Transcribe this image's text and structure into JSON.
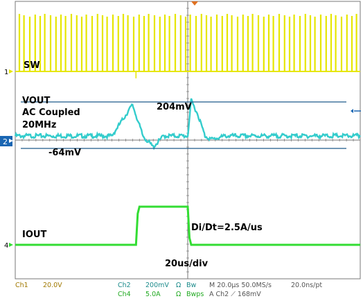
{
  "chart_data": {
    "type": "line",
    "title": "",
    "grid": true,
    "x_unit": "us",
    "x_range": [
      -100,
      100
    ],
    "series": [
      {
        "name": "SW",
        "channel": "1",
        "color": "#e6e600",
        "description_visible": "switch-node pulse train",
        "low_level_div": 0,
        "high_level_div": 1.5
      },
      {
        "name": "VOUT",
        "channel": "2",
        "color": "#33cccc",
        "notes": [
          "AC Coupled",
          "20MHz"
        ],
        "points": [
          [
            -100,
            0
          ],
          [
            -44,
            0
          ],
          [
            -32,
            0.18
          ],
          [
            -26,
            0
          ],
          [
            -20,
            -0.064
          ],
          [
            -14,
            0
          ],
          [
            0,
            0
          ],
          [
            2,
            0.204
          ],
          [
            6,
            0.12
          ],
          [
            10,
            0.0
          ],
          [
            14,
            -0.02
          ],
          [
            22,
            0
          ],
          [
            100,
            0
          ]
        ],
        "unit": "V"
      },
      {
        "name": "IOUT",
        "channel": "4",
        "color": "#33dd33",
        "points": [
          [
            -100,
            0
          ],
          [
            -30,
            0
          ],
          [
            -29,
            0.9
          ],
          [
            -28,
            1.1
          ],
          [
            0,
            1.1
          ],
          [
            1,
            0.2
          ],
          [
            2,
            0
          ],
          [
            100,
            0
          ]
        ],
        "unit": "div"
      }
    ],
    "annotations": {
      "vout_high": "204mV",
      "vout_low": "-64mV",
      "slew": "Di/Dt=2.5A/us",
      "timebase": "20us/div"
    }
  },
  "channel_markers": {
    "ch1": "1",
    "ch2": "2",
    "ch4": "4"
  },
  "labels": {
    "sw": "SW",
    "vout": "VOUT",
    "ac_coupled": "AC Coupled",
    "bw": "20MHz",
    "iout": "IOUT",
    "high": "204mV",
    "low": "-64mV",
    "slew": "Di/Dt=2.5A/us",
    "timebase": "20us/div"
  },
  "status_bar": {
    "ch1_name": "Ch1",
    "ch1_scale": "20.0V",
    "ch2_name": "Ch2",
    "ch2_scale": "200mV",
    "ch2_ohm": "Ω",
    "ch2_bw": "Bw",
    "ch4_name": "Ch4",
    "ch4_scale": "5.0A",
    "ch4_ohm": "Ω",
    "ch4_bw": "Bwps",
    "timebase": "M 20.0µs 50.0MS/s",
    "sample": "20.0ns/pt",
    "trigger": "A  Ch2  ⟋  168mV"
  },
  "colors": {
    "sw": "#e6e600",
    "vout": "#33cccc",
    "iout": "#33dd33",
    "cursor": "#1e5a8a",
    "grid": "#777777",
    "trigger_marker": "#e07020"
  }
}
